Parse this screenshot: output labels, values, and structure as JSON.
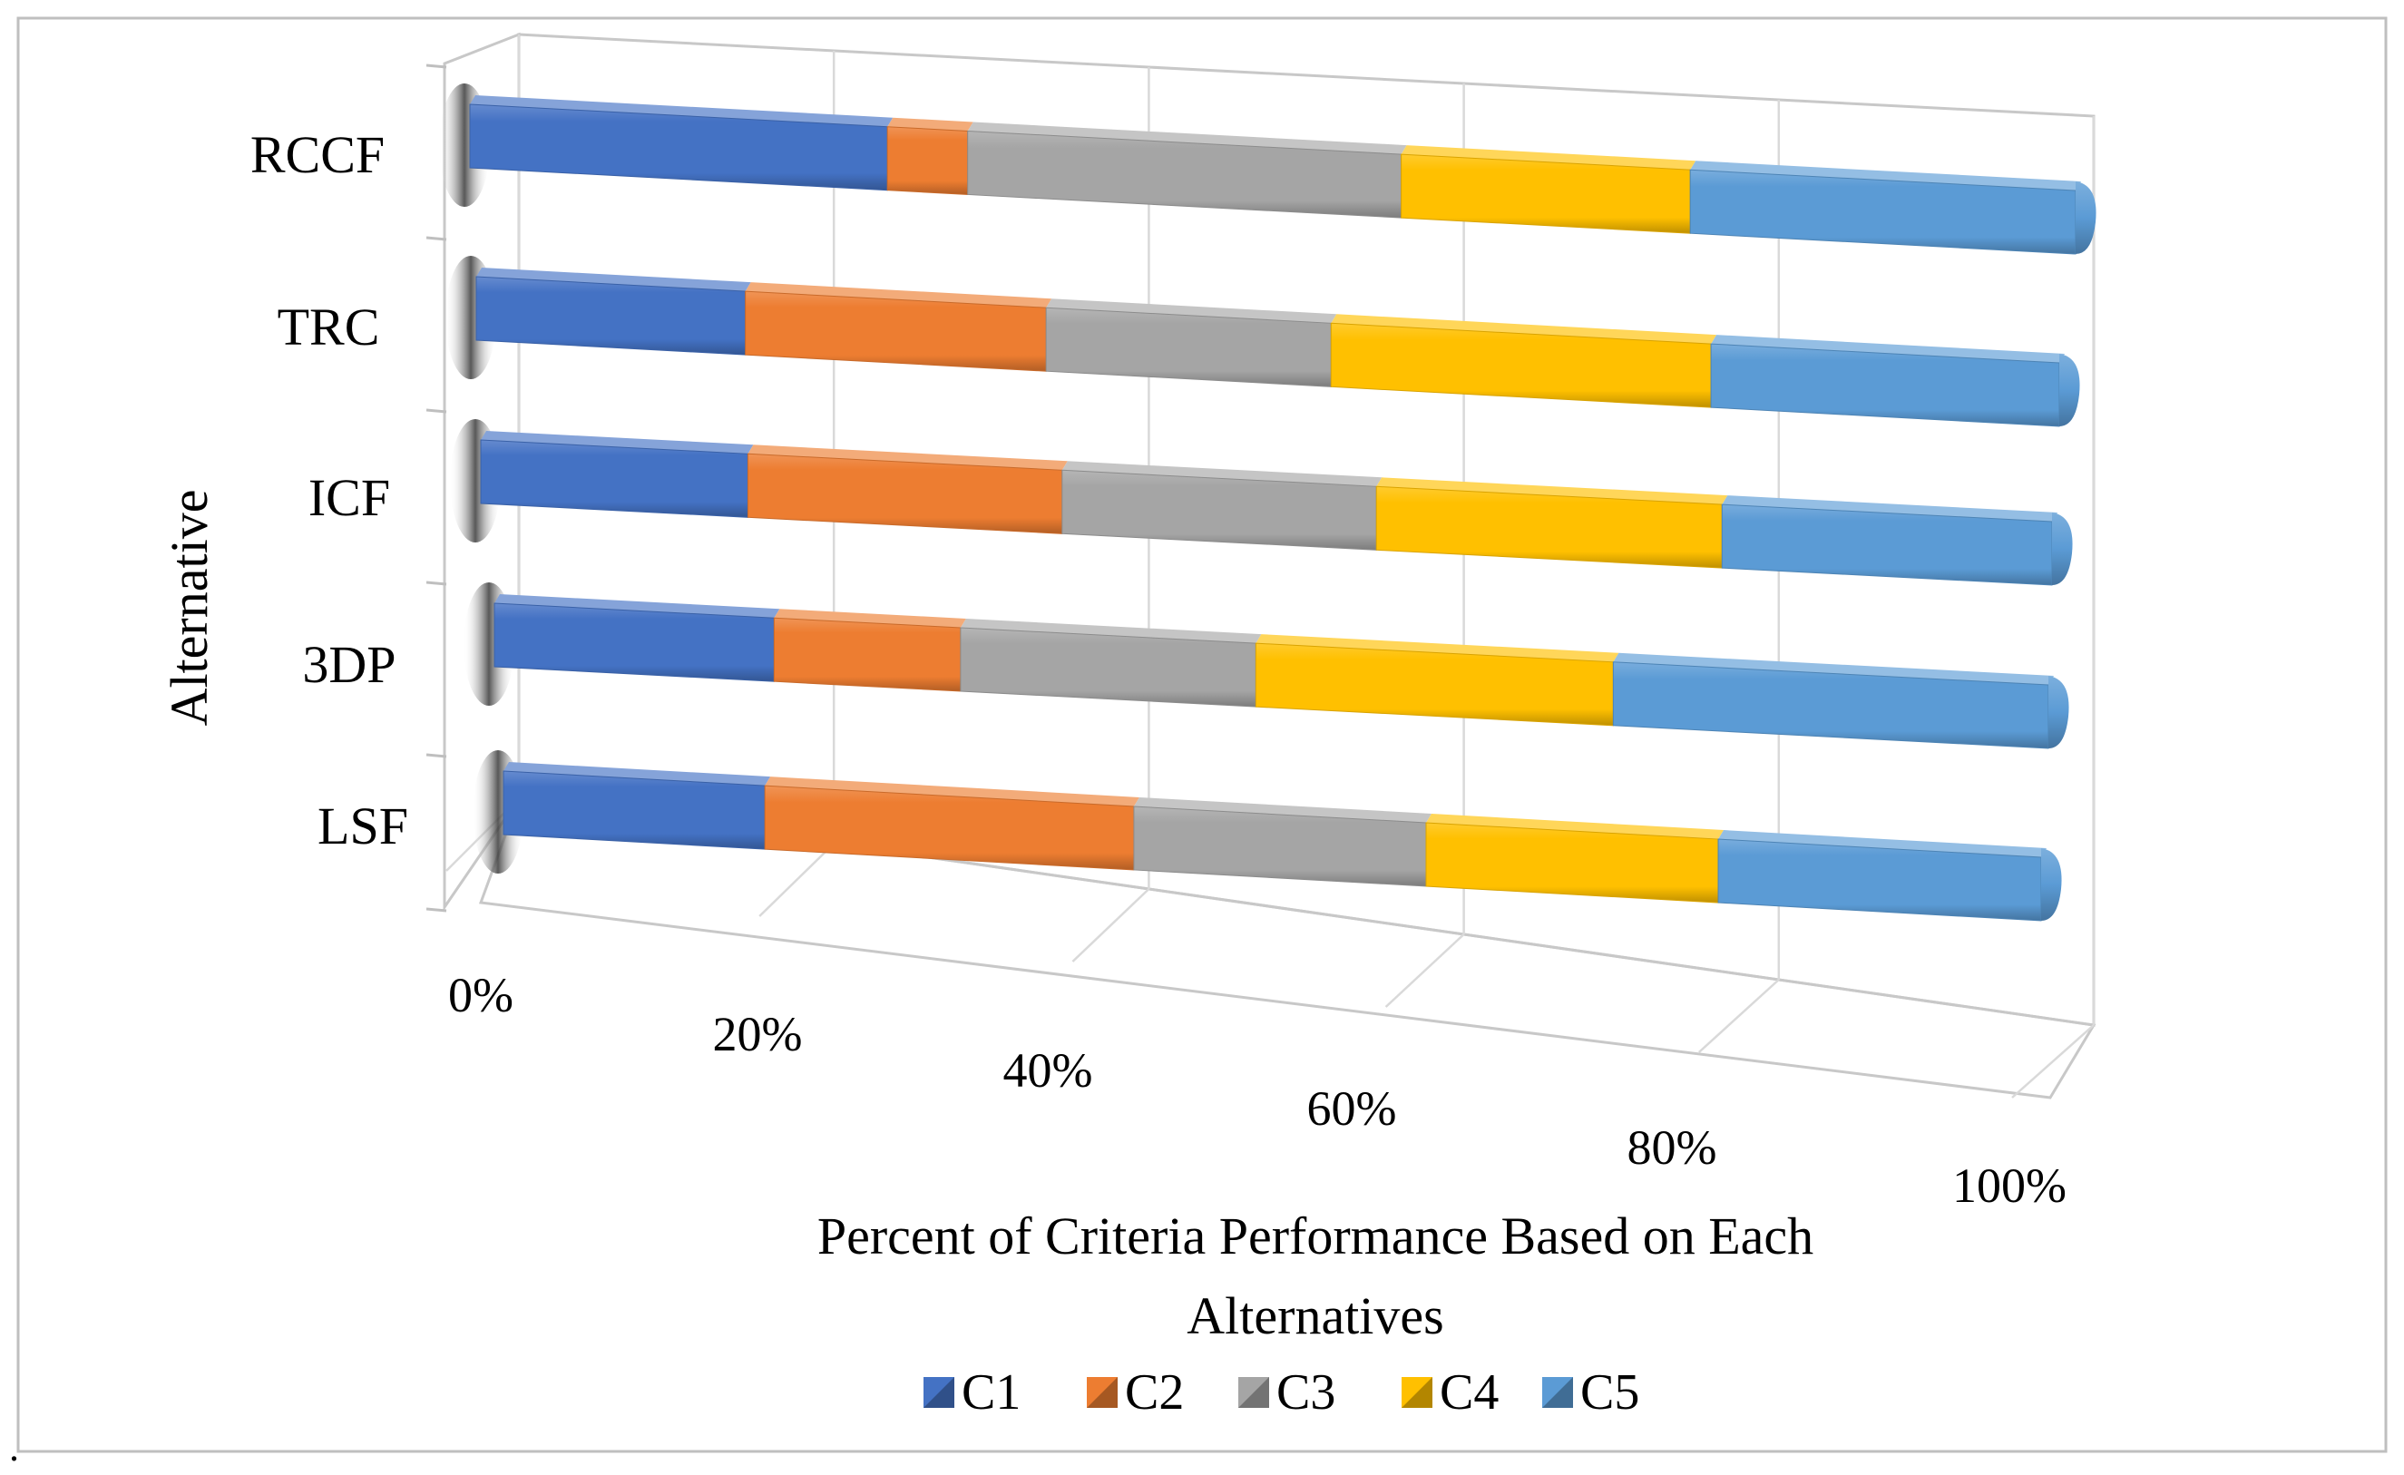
{
  "chart_data": {
    "type": "bar",
    "orientation": "horizontal",
    "stacking": "percent",
    "style": "3d",
    "categories": [
      "RCCF",
      "TRC",
      "ICF",
      "3DP",
      "LSF"
    ],
    "series": [
      {
        "name": "C1",
        "color": "#4472C4",
        "values": [
          26,
          17,
          17,
          18,
          17
        ]
      },
      {
        "name": "C2",
        "color": "#ED7D31",
        "values": [
          5,
          19,
          20,
          12,
          24
        ]
      },
      {
        "name": "C3",
        "color": "#A5A5A5",
        "values": [
          27,
          18,
          20,
          19,
          19
        ]
      },
      {
        "name": "C4",
        "color": "#FFC000",
        "values": [
          18,
          24,
          22,
          23,
          19
        ]
      },
      {
        "name": "C5",
        "color": "#5B9BD5",
        "values": [
          24,
          22,
          21,
          28,
          21
        ]
      }
    ],
    "x_ticks": [
      "0%",
      "20%",
      "40%",
      "60%",
      "80%",
      "100%"
    ],
    "xlim": [
      0,
      100
    ],
    "xlabel": "Percent of Criteria Performance Based on Each Alternatives",
    "xlabel_lines": [
      "Percent of Criteria Performance Based on Each",
      "Alternatives"
    ],
    "ylabel": "Alternative",
    "grid": true,
    "legend_position": "bottom",
    "footnote": "."
  }
}
